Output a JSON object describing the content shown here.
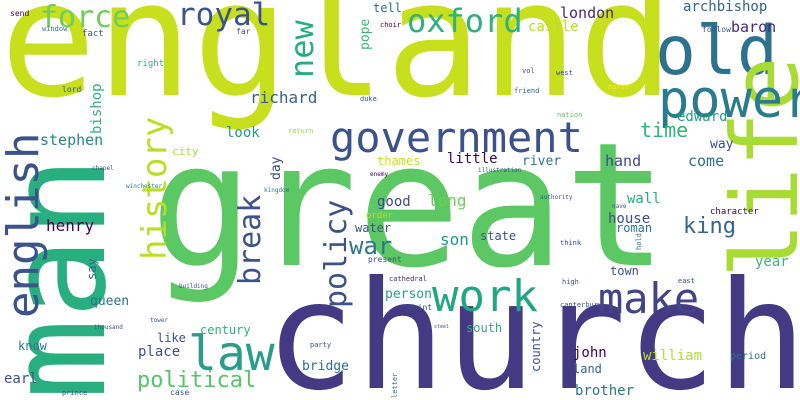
{
  "words": [
    {
      "text": "england",
      "color": "#c8df1e"
    },
    {
      "text": "great",
      "color": "#5cc863"
    },
    {
      "text": "church",
      "color": "#443983"
    },
    {
      "text": "man",
      "color": "#29af7f"
    },
    {
      "text": "old",
      "color": "#2c728e"
    },
    {
      "text": "life",
      "color": "#a8db34"
    },
    {
      "text": "power",
      "color": "#287c8e"
    },
    {
      "text": "government",
      "color": "#3b528b"
    },
    {
      "text": "work",
      "color": "#21a585"
    },
    {
      "text": "make",
      "color": "#414487"
    },
    {
      "text": "law",
      "color": "#2a9d8a"
    },
    {
      "text": "english",
      "color": "#3b528b"
    },
    {
      "text": "oxford",
      "color": "#2db27d"
    },
    {
      "text": "force",
      "color": "#6ece58"
    },
    {
      "text": "royal",
      "color": "#3b528b"
    },
    {
      "text": "history",
      "color": "#bade28"
    },
    {
      "text": "break",
      "color": "#3b528b"
    },
    {
      "text": "policy",
      "color": "#3b528b"
    },
    {
      "text": "new",
      "color": "#27ad81"
    },
    {
      "text": "war",
      "color": "#2a778e"
    },
    {
      "text": "political",
      "color": "#54c568"
    },
    {
      "text": "king",
      "color": "#31668e"
    },
    {
      "text": "time",
      "color": "#31b57b"
    },
    {
      "text": "richard",
      "color": "#33638d"
    },
    {
      "text": "stephen",
      "color": "#24868e"
    },
    {
      "text": "henry",
      "color": "#440154"
    },
    {
      "text": "london",
      "color": "#482878"
    },
    {
      "text": "archbishop",
      "color": "#31668e"
    },
    {
      "text": "baron",
      "color": "#482878"
    },
    {
      "text": "edward",
      "color": "#1fa187"
    },
    {
      "text": "hand",
      "color": "#3e4a89"
    },
    {
      "text": "come",
      "color": "#2e6e8e"
    },
    {
      "text": "way",
      "color": "#3b528b"
    },
    {
      "text": "pope",
      "color": "#35b779"
    },
    {
      "text": "tell",
      "color": "#2d708e"
    },
    {
      "text": "castle",
      "color": "#b5de2b"
    },
    {
      "text": "bishop",
      "color": "#2db27d"
    },
    {
      "text": "look",
      "color": "#1f9a8a"
    },
    {
      "text": "day",
      "color": "#3e4a89"
    },
    {
      "text": "little",
      "color": "#440154"
    },
    {
      "text": "river",
      "color": "#29798e"
    },
    {
      "text": "thames",
      "color": "#c8df1e"
    },
    {
      "text": "good",
      "color": "#3e4a89"
    },
    {
      "text": "long",
      "color": "#6ece58"
    },
    {
      "text": "son",
      "color": "#1f9a8a"
    },
    {
      "text": "state",
      "color": "#3b528b"
    },
    {
      "text": "wall",
      "color": "#27ad81"
    },
    {
      "text": "house",
      "color": "#3b528b"
    },
    {
      "text": "roman",
      "color": "#2a778e"
    },
    {
      "text": "year",
      "color": "#35b779"
    },
    {
      "text": "town",
      "color": "#3b528b"
    },
    {
      "text": "water",
      "color": "#3b528b"
    },
    {
      "text": "say",
      "color": "#31668e"
    },
    {
      "text": "queen",
      "color": "#2c728e"
    },
    {
      "text": "person",
      "color": "#2a9d8a"
    },
    {
      "text": "john",
      "color": "#440154"
    },
    {
      "text": "william",
      "color": "#b5de2b"
    },
    {
      "text": "century",
      "color": "#2db27d"
    },
    {
      "text": "like",
      "color": "#3b528b"
    },
    {
      "text": "place",
      "color": "#3b528b"
    },
    {
      "text": "know",
      "color": "#2a778e"
    },
    {
      "text": "earl",
      "color": "#3b528b"
    },
    {
      "text": "bridge",
      "color": "#2e6e8e"
    },
    {
      "text": "country",
      "color": "#3b528b"
    },
    {
      "text": "south",
      "color": "#29af7f"
    },
    {
      "text": "brother",
      "color": "#2a778e"
    },
    {
      "text": "land",
      "color": "#31668e"
    },
    {
      "text": "city",
      "color": "#a5db36"
    },
    {
      "text": "character",
      "color": "#440154"
    },
    {
      "text": "period",
      "color": "#2c728e"
    },
    {
      "text": "send",
      "color": "#440154"
    },
    {
      "text": "window",
      "color": "#2c728e"
    },
    {
      "text": "fact",
      "color": "#3b528b"
    },
    {
      "text": "far",
      "color": "#3b528b"
    },
    {
      "text": "choir",
      "color": "#440154"
    },
    {
      "text": "follow",
      "color": "#3b528b"
    },
    {
      "text": "right",
      "color": "#29af7f"
    },
    {
      "text": "lord",
      "color": "#3b528b"
    },
    {
      "text": "vol",
      "color": "#3b528b"
    },
    {
      "text": "west",
      "color": "#3b528b"
    },
    {
      "text": "north",
      "color": "#fde725"
    },
    {
      "text": "friend",
      "color": "#31668e"
    },
    {
      "text": "duke",
      "color": "#3b528b"
    },
    {
      "text": "nation",
      "color": "#5ec962"
    },
    {
      "text": "return",
      "color": "#a0da39"
    },
    {
      "text": "chapel",
      "color": "#3b528b"
    },
    {
      "text": "winchester",
      "color": "#2a788e"
    },
    {
      "text": "kingdom",
      "color": "#2a778e"
    },
    {
      "text": "enemy",
      "color": "#440154"
    },
    {
      "text": "illustration",
      "color": "#3b528b"
    },
    {
      "text": "authority",
      "color": "#3b528b"
    },
    {
      "text": "order",
      "color": "#b5de2b"
    },
    {
      "text": "present",
      "color": "#3b528b"
    },
    {
      "text": "think",
      "color": "#3b528b"
    },
    {
      "text": "hold",
      "color": "#2c728e"
    },
    {
      "text": "cathedral",
      "color": "#482878"
    },
    {
      "text": "high",
      "color": "#3b528b"
    },
    {
      "text": "east",
      "color": "#3b528b"
    },
    {
      "text": "building",
      "color": "#3b528b"
    },
    {
      "text": "canterbury",
      "color": "#3b528b"
    },
    {
      "text": "point",
      "color": "#3b528b"
    },
    {
      "text": "steel",
      "color": "#3b528b"
    },
    {
      "text": "tower",
      "color": "#3b528b"
    },
    {
      "text": "thousand",
      "color": "#3b528b"
    },
    {
      "text": "party",
      "color": "#3b528b"
    },
    {
      "text": "letter",
      "color": "#2a778e"
    },
    {
      "text": "prince",
      "color": "#3b528b"
    },
    {
      "text": "case",
      "color": "#3b528b"
    },
    {
      "text": "nave",
      "color": "#3b528b"
    }
  ]
}
